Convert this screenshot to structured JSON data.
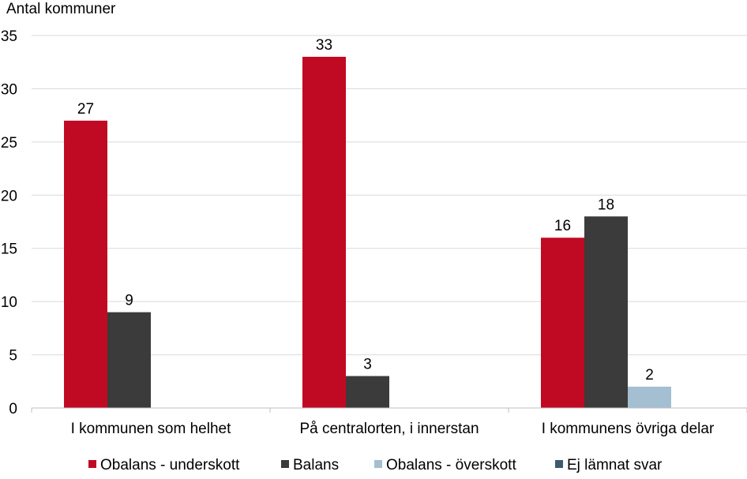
{
  "chart_data": {
    "type": "bar",
    "title": "",
    "ylabel": "Antal kommuner",
    "xlabel": "",
    "ylim": [
      0,
      35
    ],
    "yticks": [
      0,
      5,
      10,
      15,
      20,
      25,
      30,
      35
    ],
    "grid": true,
    "legend_position": "bottom",
    "categories": [
      "I kommunen som helhet",
      "På centralorten, i innerstan",
      "I kommunens övriga delar"
    ],
    "series": [
      {
        "name": "Obalans - underskott",
        "color": "#c00a24",
        "values": [
          27,
          33,
          16
        ]
      },
      {
        "name": "Balans",
        "color": "#3b3b3b",
        "values": [
          9,
          3,
          18
        ]
      },
      {
        "name": "Obalans - överskott",
        "color": "#a3bfd1",
        "values": [
          null,
          null,
          2
        ]
      },
      {
        "name": "Ej lämnat svar",
        "color": "#3e5a6e",
        "values": [
          null,
          null,
          null
        ]
      }
    ]
  }
}
